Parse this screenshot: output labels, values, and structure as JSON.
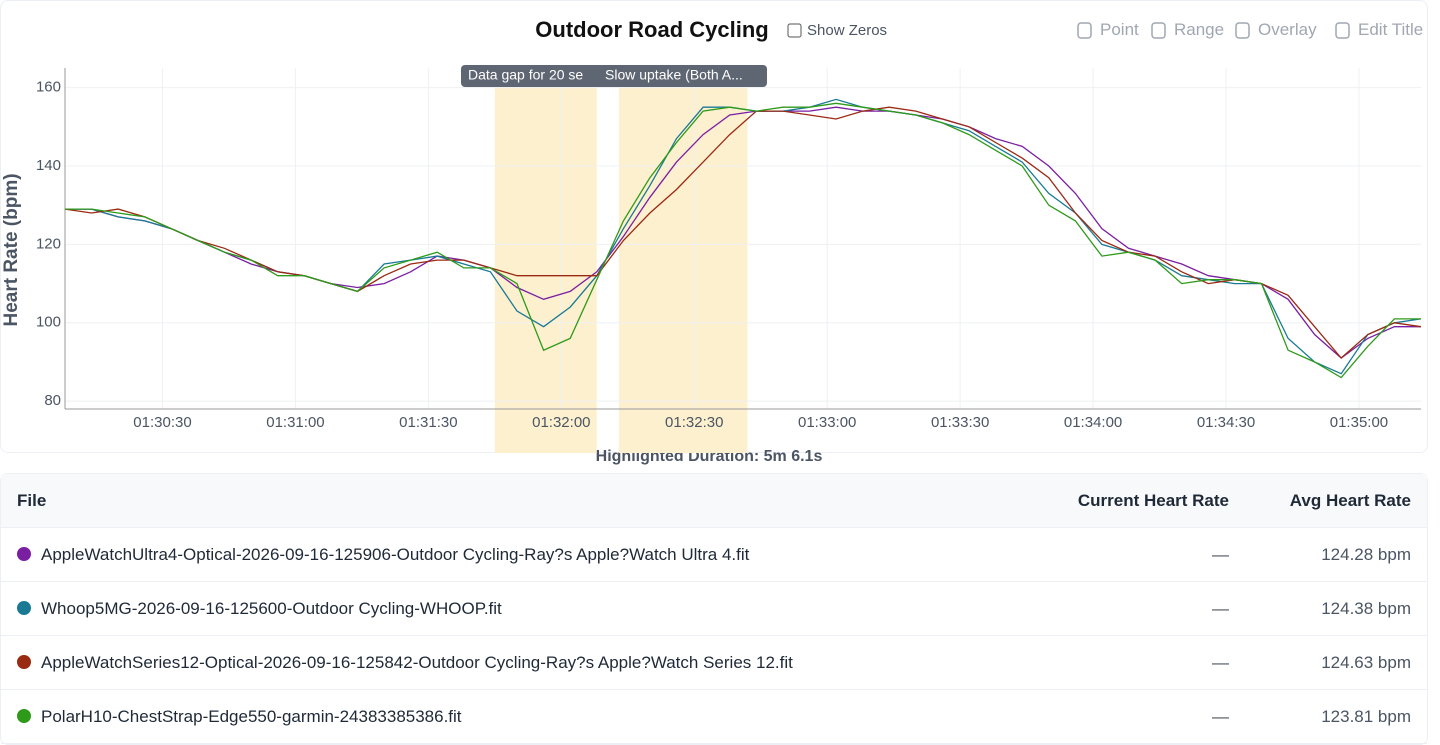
{
  "header": {
    "title": "Outdoor Road Cycling",
    "show_zeros": "Show Zeros",
    "tools": [
      "Point",
      "Range",
      "Overlay",
      "Edit Title"
    ]
  },
  "chart_data": {
    "type": "line",
    "ylabel": "Heart Rate (bpm)",
    "x": [
      5408,
      5414,
      5420,
      5426,
      5432,
      5438,
      5444,
      5450,
      5456,
      5462,
      5468,
      5474,
      5480,
      5486,
      5492,
      5498,
      5504,
      5510,
      5516,
      5522,
      5528,
      5534,
      5540,
      5546,
      5552,
      5558,
      5564,
      5570,
      5576,
      5582,
      5588,
      5594,
      5600,
      5606,
      5612,
      5618,
      5624,
      5630,
      5636,
      5642,
      5648,
      5654,
      5660,
      5666,
      5672,
      5678,
      5684,
      5690,
      5696,
      5702,
      5708,
      5714
    ],
    "series": [
      {
        "name": "AppleWatchUltra4-Optical-2026-09-16-125906-Outdoor Cycling-Ray?s Apple?Watch Ultra 4.fit",
        "color": "#7b1fa2",
        "values": [
          129,
          129,
          127,
          126,
          124,
          121,
          118,
          115,
          113,
          112,
          110,
          109,
          110,
          113,
          117,
          116,
          114,
          109,
          106,
          108,
          113,
          122,
          132,
          141,
          148,
          153,
          154,
          154,
          154,
          155,
          154,
          154,
          153,
          152,
          150,
          147,
          145,
          140,
          133,
          124,
          119,
          117,
          115,
          112,
          111,
          110,
          106,
          97,
          91,
          96,
          99,
          99
        ]
      },
      {
        "name": "Whoop5MG-2026-09-16-125600-Outdoor Cycling-WHOOP.fit",
        "color": "#1a7a94",
        "values": [
          129,
          129,
          127,
          126,
          124,
          121,
          118,
          116,
          113,
          112,
          110,
          108,
          115,
          116,
          117,
          115,
          113,
          103,
          99,
          104,
          112,
          124,
          135,
          147,
          155,
          155,
          154,
          154,
          155,
          157,
          155,
          154,
          153,
          151,
          149,
          145,
          141,
          133,
          128,
          120,
          118,
          116,
          112,
          111,
          110,
          110,
          96,
          90,
          87,
          97,
          100,
          101
        ]
      },
      {
        "name": "AppleWatchSeries12-Optical-2026-09-16-125842-Outdoor Cycling-Ray?s Apple?Watch Series 12.fit",
        "color": "#9a2a12",
        "values": [
          129,
          128,
          129,
          127,
          124,
          121,
          119,
          116,
          113,
          112,
          110,
          108,
          112,
          115,
          116,
          116,
          114,
          112,
          112,
          112,
          112,
          121,
          128,
          134,
          141,
          148,
          154,
          154,
          153,
          152,
          154,
          155,
          154,
          152,
          150,
          146,
          142,
          137,
          128,
          121,
          118,
          117,
          113,
          110,
          111,
          110,
          107,
          99,
          91,
          97,
          100,
          99
        ]
      },
      {
        "name": "PolarH10-ChestStrap-Edge550-garmin-24383385386.fit",
        "color": "#2e9a1a",
        "values": [
          129,
          129,
          128,
          127,
          124,
          121,
          118,
          116,
          112,
          112,
          110,
          108,
          114,
          116,
          118,
          114,
          114,
          110,
          93,
          96,
          111,
          126,
          137,
          146,
          154,
          155,
          154,
          155,
          155,
          156,
          155,
          154,
          153,
          151,
          148,
          144,
          140,
          130,
          126,
          117,
          118,
          116,
          110,
          111,
          111,
          110,
          93,
          90,
          86,
          94,
          101,
          101
        ]
      }
    ],
    "xlim": [
      5408,
      5714
    ],
    "ylim": [
      78,
      165
    ],
    "yticks": [
      80,
      100,
      120,
      140,
      160
    ],
    "xticks": [
      {
        "value": 5430,
        "label": "01:30:30"
      },
      {
        "value": 5460,
        "label": "01:31:00"
      },
      {
        "value": 5490,
        "label": "01:31:30"
      },
      {
        "value": 5520,
        "label": "01:32:00"
      },
      {
        "value": 5550,
        "label": "01:32:30"
      },
      {
        "value": 5580,
        "label": "01:33:00"
      },
      {
        "value": 5610,
        "label": "01:33:30"
      },
      {
        "value": 5640,
        "label": "01:34:00"
      },
      {
        "value": 5670,
        "label": "01:34:30"
      },
      {
        "value": 5700,
        "label": "01:35:00"
      }
    ],
    "grid": true,
    "highlights": [
      {
        "start": 5505,
        "end": 5528,
        "label": "Data gap for 20 se"
      },
      {
        "start": 5533,
        "end": 5562,
        "label": "Slow uptake (Both A..."
      }
    ],
    "highlight_duration": "Highlighted Duration: 5m 6.1s"
  },
  "table": {
    "headers": [
      "File",
      "Current Heart Rate",
      "Avg Heart Rate"
    ],
    "rows": [
      [
        "—",
        "124.28 bpm"
      ],
      [
        "—",
        "124.38 bpm"
      ],
      [
        "—",
        "124.63 bpm"
      ],
      [
        "—",
        "123.81 bpm"
      ]
    ]
  }
}
